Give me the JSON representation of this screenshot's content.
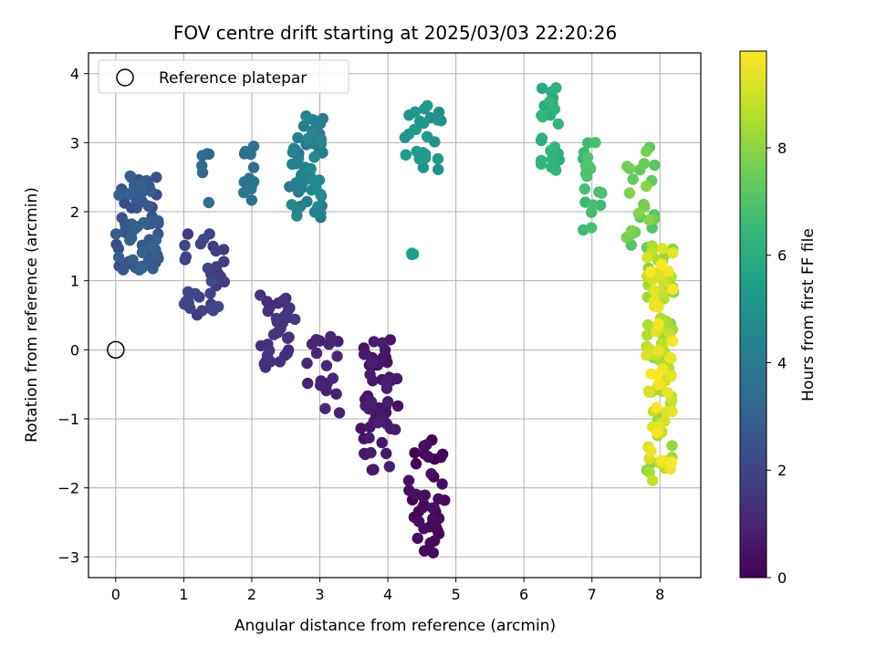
{
  "chart_data": {
    "type": "scatter",
    "title": "FOV centre drift starting at 2025/03/03 22:20:26",
    "xlabel": "Angular distance from reference (arcmin)",
    "ylabel": "Rotation from reference (arcmin)",
    "xlim": [
      -0.4,
      8.6
    ],
    "ylim": [
      -3.3,
      4.3
    ],
    "xticks": [
      "0",
      "1",
      "2",
      "3",
      "4",
      "5",
      "6",
      "7",
      "8"
    ],
    "yticks": [
      "−3",
      "−2",
      "−1",
      "0",
      "1",
      "2",
      "3",
      "4"
    ],
    "grid": true,
    "legend": {
      "placement": "top-left",
      "entries": [
        {
          "label": "Reference platepar",
          "marker": "open-circle"
        }
      ]
    },
    "reference_point": {
      "x": 0,
      "y": 0
    },
    "colorbar": {
      "label": "Hours from first FF file",
      "range": [
        0,
        9.8
      ],
      "ticks": [
        "0",
        "2",
        "4",
        "6",
        "8"
      ],
      "colormap": "viridis"
    },
    "clusters": [
      {
        "x": [
          4.3,
          4.85
        ],
        "y": [
          -2.95,
          -1.3
        ],
        "h": [
          0.0,
          0.45
        ],
        "n": 45
      },
      {
        "x": [
          3.6,
          4.15
        ],
        "y": [
          -1.75,
          0.15
        ],
        "h": [
          0.45,
          0.85
        ],
        "n": 55
      },
      {
        "x": [
          2.8,
          3.3
        ],
        "y": [
          -0.95,
          0.2
        ],
        "h": [
          0.85,
          1.15
        ],
        "n": 20
      },
      {
        "x": [
          2.1,
          2.65
        ],
        "y": [
          -0.3,
          0.8
        ],
        "h": [
          1.15,
          1.6
        ],
        "n": 35
      },
      {
        "x": [
          1.0,
          1.6
        ],
        "y": [
          0.5,
          1.7
        ],
        "h": [
          1.6,
          2.2
        ],
        "n": 35
      },
      {
        "x": [
          0.0,
          0.65
        ],
        "y": [
          1.15,
          2.55
        ],
        "h": [
          2.2,
          3.1
        ],
        "n": 75
      },
      {
        "x": [
          1.25,
          1.4
        ],
        "y": [
          2.0,
          3.0
        ],
        "h": [
          3.2,
          3.5
        ],
        "n": 6
      },
      {
        "x": [
          1.85,
          2.05
        ],
        "y": [
          2.15,
          2.95
        ],
        "h": [
          3.5,
          3.8
        ],
        "n": 12
      },
      {
        "x": [
          2.55,
          3.05
        ],
        "y": [
          1.9,
          3.4
        ],
        "h": [
          3.8,
          4.7
        ],
        "n": 60
      },
      {
        "x": [
          4.25,
          4.8
        ],
        "y": [
          2.6,
          3.6
        ],
        "h": [
          4.9,
          5.4
        ],
        "n": 25
      },
      {
        "x": [
          4.35,
          4.4
        ],
        "y": [
          1.37,
          1.4
        ],
        "h": [
          5.4,
          5.5
        ],
        "n": 4
      },
      {
        "x": [
          6.25,
          6.55
        ],
        "y": [
          2.6,
          3.95
        ],
        "h": [
          5.9,
          6.5
        ],
        "n": 25
      },
      {
        "x": [
          6.85,
          7.15
        ],
        "y": [
          1.7,
          3.15
        ],
        "h": [
          6.6,
          7.1
        ],
        "n": 20
      },
      {
        "x": [
          7.5,
          7.95
        ],
        "y": [
          1.45,
          3.0
        ],
        "h": [
          7.1,
          8.0
        ],
        "n": 25
      },
      {
        "x": [
          7.8,
          8.2
        ],
        "y": [
          -1.9,
          1.6
        ],
        "h": [
          8.0,
          9.8
        ],
        "n": 120
      }
    ]
  }
}
